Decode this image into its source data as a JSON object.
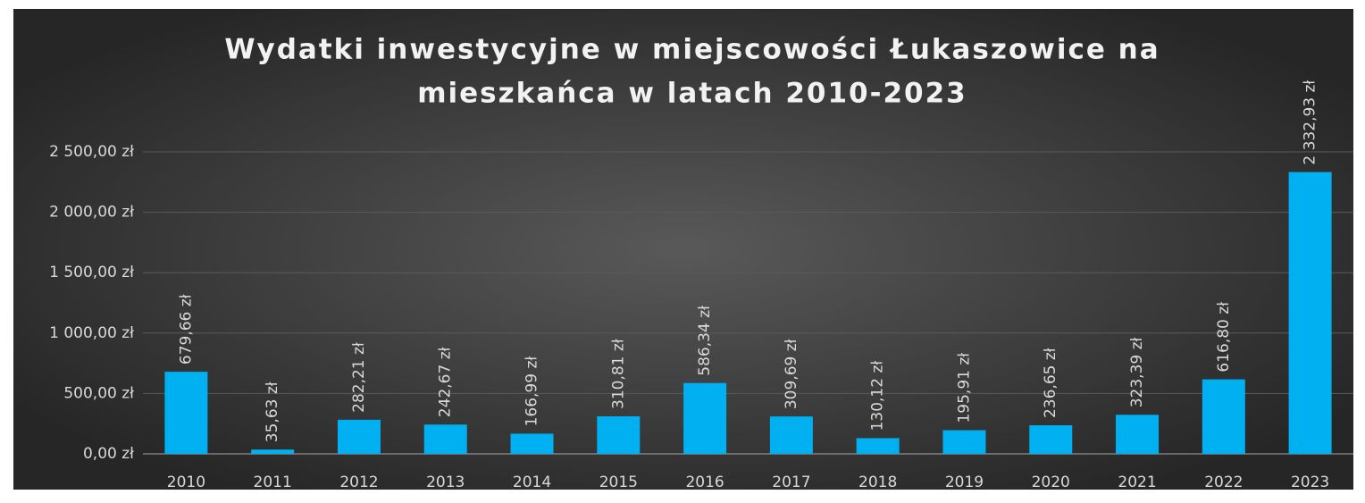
{
  "chart_data": {
    "type": "bar",
    "title": [
      "Wydatki inwestycyjne w miejscowości Łukaszowice na",
      "mieszkańca w latach 2010-2023"
    ],
    "categories": [
      "2010",
      "2011",
      "2012",
      "2013",
      "2014",
      "2015",
      "2016",
      "2017",
      "2018",
      "2019",
      "2020",
      "2021",
      "2022",
      "2023"
    ],
    "values": [
      679.66,
      35.63,
      282.21,
      242.67,
      166.99,
      310.81,
      586.34,
      309.69,
      130.12,
      195.91,
      236.65,
      323.39,
      616.8,
      2332.93
    ],
    "value_labels": [
      "679,66 zł",
      "35,63 zł",
      "282,21 zł",
      "242,67 zł",
      "166,99 zł",
      "310,81 zł",
      "586,34 zł",
      "309,69 zł",
      "130,12 zł",
      "195,91 zł",
      "236,65 zł",
      "323,39 zł",
      "616,80 zł",
      "2 332,93 zł"
    ],
    "color": "#00b0f0",
    "ylim": [
      0,
      2500
    ],
    "yticks": [
      {
        "value": 0,
        "label": "0,00 zł"
      },
      {
        "value": 500,
        "label": "500,00 zł"
      },
      {
        "value": 1000,
        "label": "1 000,00 zł"
      },
      {
        "value": 1500,
        "label": "1 500,00 zł"
      },
      {
        "value": 2000,
        "label": "2 000,00 zł"
      },
      {
        "value": 2500,
        "label": "2 500,00 zł"
      }
    ],
    "grid": true
  }
}
